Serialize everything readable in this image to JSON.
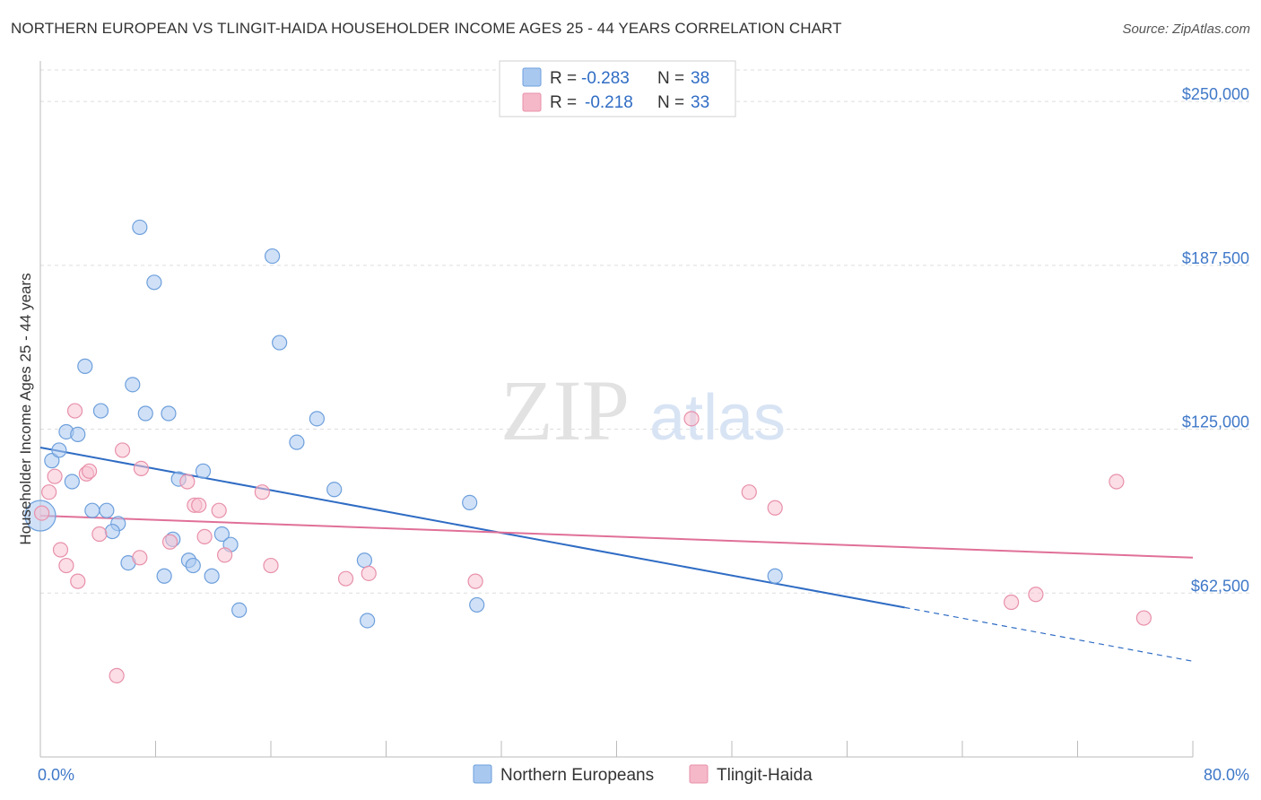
{
  "header": {
    "title": "NORTHERN EUROPEAN VS TLINGIT-HAIDA HOUSEHOLDER INCOME AGES 25 - 44 YEARS CORRELATION CHART",
    "source": "Source: ZipAtlas.com"
  },
  "watermark": {
    "zip": "ZIP",
    "atlas": "atlas"
  },
  "legend": {
    "rows": [
      {
        "r_label": "R =",
        "r_value": "-0.283",
        "n_label": "N =",
        "n_value": "38",
        "color": "#a9c8f0"
      },
      {
        "r_label": "R =",
        "r_value": "-0.218",
        "n_label": "N =",
        "n_value": "33",
        "color": "#f5b8c9"
      }
    ]
  },
  "bottom_legend": [
    {
      "label": "Northern Europeans",
      "color": "#a9c8f0"
    },
    {
      "label": "Tlingit-Haida",
      "color": "#f5b8c9"
    }
  ],
  "colors": {
    "blue_fill": "#a9c8f0",
    "blue_stroke": "#6d9fdc",
    "blue_line": "#2f6cc4",
    "pink_fill": "#f7c3d1",
    "pink_stroke": "#e890aa",
    "pink_line": "#e07098",
    "grid": "#dddddd",
    "axis": "#bbbbbb"
  },
  "chart_data": {
    "type": "scatter",
    "title": "NORTHERN EUROPEAN VS TLINGIT-HAIDA HOUSEHOLDER INCOME AGES 25 - 44 YEARS CORRELATION CHART",
    "xlabel": "",
    "ylabel": "Householder Income Ages 25 - 44 years",
    "xlim": [
      0,
      80
    ],
    "ylim": [
      0,
      262000
    ],
    "x_tick_labels": [
      "0.0%",
      "80.0%"
    ],
    "y_ticks": [
      {
        "value": 62500,
        "label": "$62,500"
      },
      {
        "value": 125000,
        "label": "$125,000"
      },
      {
        "value": 187500,
        "label": "$187,500"
      },
      {
        "value": 250000,
        "label": "$250,000"
      }
    ],
    "grid": true,
    "series": [
      {
        "name": "Northern Europeans",
        "points": [
          [
            0.0,
            92000,
            1
          ],
          [
            0.8,
            113000,
            0
          ],
          [
            1.3,
            117000,
            0
          ],
          [
            1.8,
            124000,
            0
          ],
          [
            2.6,
            123000,
            0
          ],
          [
            2.2,
            105000,
            0
          ],
          [
            3.1,
            149000,
            0
          ],
          [
            4.2,
            132000,
            0
          ],
          [
            3.6,
            94000,
            0
          ],
          [
            4.6,
            94000,
            0
          ],
          [
            5.4,
            89000,
            0
          ],
          [
            5.0,
            86000,
            0
          ],
          [
            6.4,
            142000,
            0
          ],
          [
            6.9,
            202000,
            0
          ],
          [
            7.3,
            131000,
            0
          ],
          [
            6.1,
            74000,
            0
          ],
          [
            7.9,
            181000,
            0
          ],
          [
            8.6,
            69000,
            0
          ],
          [
            8.9,
            131000,
            0
          ],
          [
            9.2,
            83000,
            0
          ],
          [
            9.6,
            106000,
            0
          ],
          [
            10.3,
            75000,
            0
          ],
          [
            10.6,
            73000,
            0
          ],
          [
            11.3,
            109000,
            0
          ],
          [
            11.9,
            69000,
            0
          ],
          [
            12.6,
            85000,
            0
          ],
          [
            13.2,
            81000,
            0
          ],
          [
            13.8,
            56000,
            0
          ],
          [
            16.1,
            191000,
            0
          ],
          [
            16.6,
            158000,
            0
          ],
          [
            17.8,
            120000,
            0
          ],
          [
            19.2,
            129000,
            0
          ],
          [
            20.4,
            102000,
            0
          ],
          [
            22.5,
            75000,
            0
          ],
          [
            22.7,
            52000,
            0
          ],
          [
            29.8,
            97000,
            0
          ],
          [
            30.3,
            58000,
            0
          ],
          [
            51.0,
            69000,
            0
          ]
        ]
      },
      {
        "name": "Tlingit-Haida",
        "points": [
          [
            0.1,
            93000,
            0
          ],
          [
            0.6,
            101000,
            0
          ],
          [
            1.0,
            107000,
            0
          ],
          [
            1.4,
            79000,
            0
          ],
          [
            1.8,
            73000,
            0
          ],
          [
            2.4,
            132000,
            0
          ],
          [
            2.6,
            67000,
            0
          ],
          [
            3.2,
            108000,
            0
          ],
          [
            3.4,
            109000,
            0
          ],
          [
            4.1,
            85000,
            0
          ],
          [
            5.3,
            31000,
            0
          ],
          [
            5.7,
            117000,
            0
          ],
          [
            6.9,
            76000,
            0
          ],
          [
            7.0,
            110000,
            0
          ],
          [
            9.0,
            82000,
            0
          ],
          [
            10.2,
            105000,
            0
          ],
          [
            10.7,
            96000,
            0
          ],
          [
            11.0,
            96000,
            0
          ],
          [
            11.4,
            84000,
            0
          ],
          [
            12.4,
            94000,
            0
          ],
          [
            12.8,
            77000,
            0
          ],
          [
            15.4,
            101000,
            0
          ],
          [
            16.0,
            73000,
            0
          ],
          [
            21.2,
            68000,
            0
          ],
          [
            22.8,
            70000,
            0
          ],
          [
            30.2,
            67000,
            0
          ],
          [
            45.2,
            129000,
            0
          ],
          [
            49.2,
            101000,
            0
          ],
          [
            51.0,
            95000,
            0
          ],
          [
            67.4,
            59000,
            0
          ],
          [
            69.1,
            62000,
            0
          ],
          [
            74.7,
            105000,
            0
          ],
          [
            76.6,
            53000,
            0
          ]
        ]
      }
    ],
    "trend_lines": [
      {
        "series": "Northern Europeans",
        "x0": 0,
        "y0": 118000,
        "x1": 60,
        "y1": 57000,
        "dash_to_x": 80,
        "dash_to_y": 36500
      },
      {
        "series": "Tlingit-Haida",
        "x0": 0,
        "y0": 92000,
        "x1": 80,
        "y1": 76000
      }
    ]
  }
}
